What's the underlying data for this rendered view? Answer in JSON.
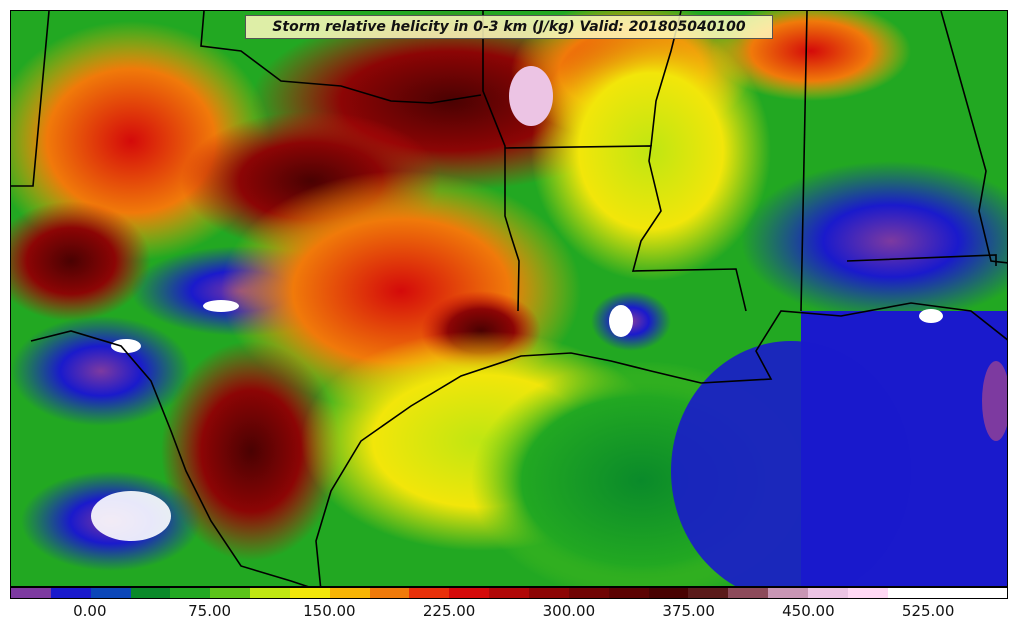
{
  "title": "Storm relative helicity in 0-3 km (J/kg) Valid: 201805040100",
  "colorbar": {
    "min": -50,
    "max": 575,
    "step": 25,
    "colors": [
      "#7d3aa0",
      "#1a1acc",
      "#0c47b8",
      "#0a8a2a",
      "#22a822",
      "#5cc41a",
      "#bfe612",
      "#f2e60a",
      "#f7b405",
      "#f07a0a",
      "#e8300a",
      "#d40a0a",
      "#b00808",
      "#8c0505",
      "#700404",
      "#5c0303",
      "#480202",
      "#5a1a1a",
      "#8c4a5a",
      "#c896b4",
      "#ecc4e4",
      "#ffd8f4",
      "#ffffff",
      "#ffffff",
      "#ffffff"
    ],
    "tick_labels": [
      "0.00",
      "75.00",
      "150.00",
      "225.00",
      "300.00",
      "375.00",
      "450.00",
      "525.00"
    ],
    "tick_values": [
      0,
      75,
      150,
      225,
      300,
      375,
      450,
      525
    ]
  }
}
